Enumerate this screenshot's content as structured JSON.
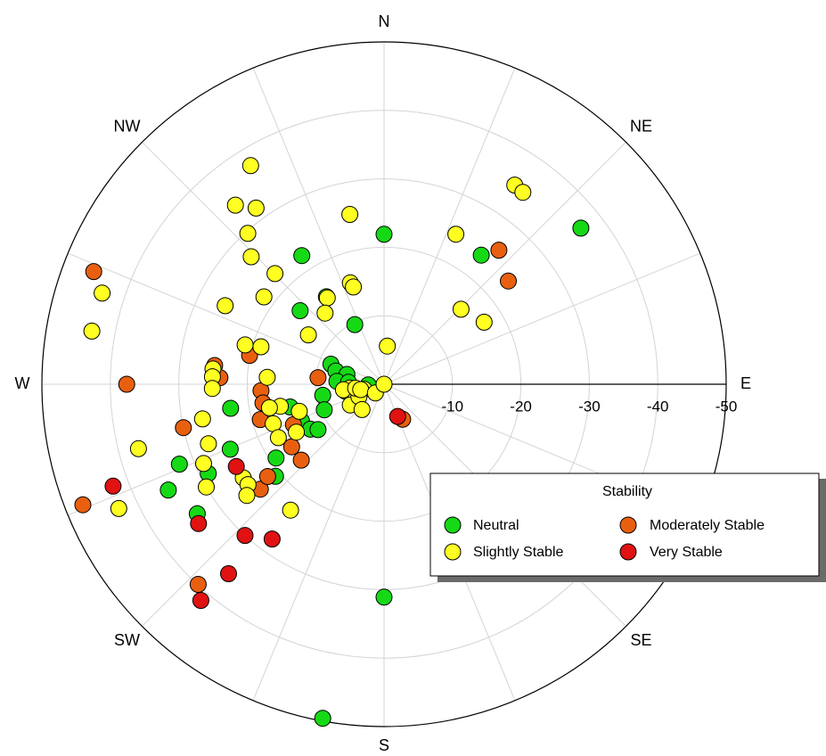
{
  "chart_data": {
    "type": "scatter",
    "subtype": "polar",
    "angular_axis": {
      "labels": [
        "N",
        "NE",
        "E",
        "SE",
        "S",
        "SW",
        "W",
        "NW"
      ],
      "directions_deg": [
        0,
        45,
        90,
        135,
        180,
        225,
        270,
        315
      ],
      "rotation": "clockwise",
      "zero": "top",
      "spoke_interval_deg": 22.5
    },
    "radial_axis": {
      "range": [
        0,
        -50
      ],
      "ticks": [
        -10,
        -20,
        -30,
        -40,
        -50
      ],
      "tick_labels": [
        "-10",
        "-20",
        "-30",
        "-40",
        "-50"
      ],
      "label_direction": "E"
    },
    "grid": true,
    "legend": {
      "title": "Stability",
      "placement": "lower-right",
      "entries": [
        {
          "key": "neutral",
          "label": "Neutral",
          "color": "#16d916"
        },
        {
          "key": "moderately_stable",
          "label": "Moderately Stable",
          "color": "#e8600f"
        },
        {
          "key": "slightly_stable",
          "label": "Slightly Stable",
          "color": "#ffff22"
        },
        {
          "key": "very_stable",
          "label": "Very Stable",
          "color": "#e01212"
        }
      ]
    },
    "series": [
      {
        "name": "Neutral",
        "color": "#16d916",
        "points": [
          {
            "theta": 0.0,
            "r": -21.9
          },
          {
            "theta": 37.0,
            "r": -23.6
          },
          {
            "theta": 51.6,
            "r": -36.7
          },
          {
            "theta": 327.4,
            "r": -22.3
          },
          {
            "theta": 326.6,
            "r": -15.3
          },
          {
            "theta": 311.2,
            "r": -16.3
          },
          {
            "theta": 333.9,
            "r": -9.7
          },
          {
            "theta": 290.7,
            "r": -8.3
          },
          {
            "theta": 285.4,
            "r": -7.3
          },
          {
            "theta": 284.8,
            "r": -5.6
          },
          {
            "theta": 273.6,
            "r": -6.9
          },
          {
            "theta": 273.2,
            "r": -5.2
          },
          {
            "theta": 259.6,
            "r": -5.7
          },
          {
            "theta": 255.3,
            "r": -4.7
          },
          {
            "theta": 267.8,
            "r": -2.3
          },
          {
            "theta": 259.8,
            "r": -9.1
          },
          {
            "theta": 246.9,
            "r": -9.5
          },
          {
            "theta": 256.4,
            "r": -14.1
          },
          {
            "theta": 246.0,
            "r": -13.2
          },
          {
            "theta": 238.6,
            "r": -12.6
          },
          {
            "theta": 235.5,
            "r": -11.7
          },
          {
            "theta": 235.7,
            "r": -19.1
          },
          {
            "theta": 261.1,
            "r": -22.7
          },
          {
            "theta": 247.1,
            "r": -24.4
          },
          {
            "theta": 243.1,
            "r": -28.8
          },
          {
            "theta": 248.7,
            "r": -32.1
          },
          {
            "theta": 243.9,
            "r": -35.1
          },
          {
            "theta": 229.7,
            "r": -20.8
          },
          {
            "theta": 235.3,
            "r": -33.2
          },
          {
            "theta": 180.0,
            "r": -31.1
          },
          {
            "theta": 190.4,
            "r": -49.6
          }
        ]
      },
      {
        "name": "Moderately Stable",
        "color": "#e8600f",
        "points": [
          {
            "theta": 40.6,
            "r": -25.8
          },
          {
            "theta": 50.3,
            "r": -23.6
          },
          {
            "theta": 291.2,
            "r": -45.5
          },
          {
            "theta": 282.1,
            "r": -20.1
          },
          {
            "theta": 276.3,
            "r": -24.9
          },
          {
            "theta": 272.3,
            "r": -24.0
          },
          {
            "theta": 267.0,
            "r": -18.0
          },
          {
            "theta": 261.2,
            "r": -17.9
          },
          {
            "theta": 275.7,
            "r": -9.7
          },
          {
            "theta": 254.1,
            "r": -18.8
          },
          {
            "theta": 270.0,
            "r": -37.6
          },
          {
            "theta": 257.8,
            "r": -30.0
          },
          {
            "theta": 246.0,
            "r": -14.5
          },
          {
            "theta": 235.9,
            "r": -16.3
          },
          {
            "theta": 227.5,
            "r": -16.4
          },
          {
            "theta": 152.0,
            "r": -5.8
          },
          {
            "theta": 248.2,
            "r": -47.4
          },
          {
            "theta": 229.7,
            "r": -23.7
          },
          {
            "theta": 231.6,
            "r": -21.7
          },
          {
            "theta": 222.9,
            "r": -39.9
          }
        ]
      },
      {
        "name": "Slightly Stable",
        "color": "#ffff22",
        "points": [
          {
            "theta": 33.3,
            "r": -34.8
          },
          {
            "theta": 35.9,
            "r": -34.6
          },
          {
            "theta": 25.6,
            "r": -24.3
          },
          {
            "theta": 45.8,
            "r": -15.7
          },
          {
            "theta": 58.2,
            "r": -17.2
          },
          {
            "theta": 5.0,
            "r": -5.6
          },
          {
            "theta": 341.6,
            "r": -15.6
          },
          {
            "theta": 342.5,
            "r": -14.9
          },
          {
            "theta": 348.6,
            "r": -25.3
          },
          {
            "theta": 324.0,
            "r": -31.8
          },
          {
            "theta": 328.6,
            "r": -37.4
          },
          {
            "theta": 320.3,
            "r": -34.0
          },
          {
            "theta": 317.9,
            "r": -29.7
          },
          {
            "theta": 313.8,
            "r": -26.9
          },
          {
            "theta": 315.4,
            "r": -22.7
          },
          {
            "theta": 326.7,
            "r": -15.1
          },
          {
            "theta": 320.3,
            "r": -13.5
          },
          {
            "theta": 306.0,
            "r": -21.7
          },
          {
            "theta": 296.3,
            "r": -25.9
          },
          {
            "theta": 287.9,
            "r": -43.3
          },
          {
            "theta": 280.3,
            "r": -43.4
          },
          {
            "theta": 303.1,
            "r": -13.2
          },
          {
            "theta": 285.8,
            "r": -21.1
          },
          {
            "theta": 286.9,
            "r": -18.8
          },
          {
            "theta": 275.1,
            "r": -25.1
          },
          {
            "theta": 272.5,
            "r": -25.1
          },
          {
            "theta": 273.4,
            "r": -17.1
          },
          {
            "theta": 268.6,
            "r": -25.1
          },
          {
            "theta": 259.2,
            "r": -27.0
          },
          {
            "theta": 255.3,
            "r": -37.1
          },
          {
            "theta": 244.9,
            "r": -42.8
          },
          {
            "theta": 258.0,
            "r": -15.5
          },
          {
            "theta": 258.4,
            "r": -17.1
          },
          {
            "theta": 250.4,
            "r": -17.2
          },
          {
            "theta": 243.2,
            "r": -17.3
          },
          {
            "theta": 241.4,
            "r": -14.6
          },
          {
            "theta": 252.3,
            "r": -13.0
          },
          {
            "theta": 251.3,
            "r": -27.1
          },
          {
            "theta": 246.3,
            "r": -28.8
          },
          {
            "theta": 236.4,
            "r": -24.7
          },
          {
            "theta": 233.6,
            "r": -24.7
          },
          {
            "theta": 240.0,
            "r": -30.0
          },
          {
            "theta": 231.0,
            "r": -25.8
          },
          {
            "theta": 216.6,
            "r": -22.9
          },
          {
            "theta": 263.7,
            "r": -5.0
          },
          {
            "theta": 262.1,
            "r": -6.0
          },
          {
            "theta": 240.8,
            "r": -4.9
          },
          {
            "theta": 238.4,
            "r": -5.8
          },
          {
            "theta": 255.8,
            "r": -3.0
          },
          {
            "theta": 243.5,
            "r": -4.1
          },
          {
            "theta": 221.0,
            "r": -4.9
          },
          {
            "theta": 262.1,
            "r": -4.2
          },
          {
            "theta": 257.0,
            "r": -3.5
          },
          {
            "theta": 224.8,
            "r": -1.8
          },
          {
            "theta": 270.0,
            "r": -0.0
          }
        ]
      },
      {
        "name": "Very Stable",
        "color": "#e01212",
        "points": [
          {
            "theta": 240.9,
            "r": -24.7
          },
          {
            "theta": 233.1,
            "r": -33.9
          },
          {
            "theta": 222.6,
            "r": -30.0
          },
          {
            "theta": 215.9,
            "r": -27.9
          },
          {
            "theta": 220.3,
            "r": -41.4
          },
          {
            "theta": 219.4,
            "r": -35.8
          },
          {
            "theta": 249.4,
            "r": -42.3
          },
          {
            "theta": 157.0,
            "r": -5.1
          }
        ]
      }
    ]
  }
}
